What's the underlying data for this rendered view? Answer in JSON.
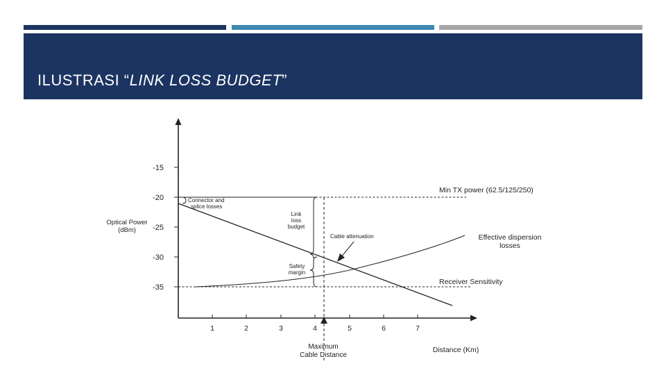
{
  "slide": {
    "title_prefix": "ILUSTRASI “",
    "title_italic": "LINK LOSS BUDGET",
    "title_suffix": "”",
    "bar_colors": [
      "#1c3461",
      "#3e88b2",
      "#a6a6a6"
    ]
  },
  "figure": {
    "ylabel_line1": "Optical Power",
    "ylabel_line2": "(dBm)",
    "xlabel": "Distance (Km)",
    "y_ticks": [
      "-15",
      "-20",
      "-25",
      "-30",
      "-35"
    ],
    "x_ticks": [
      "1",
      "2",
      "3",
      "4",
      "5",
      "6",
      "7"
    ],
    "labels": {
      "min_tx": "Min TX power (62.5/125/250)",
      "dispersion_1": "Effective dispersion",
      "dispersion_2": "losses",
      "receiver": "Receiver Sensitivity",
      "cable_attenuation": "Cable attenuation",
      "connector_1": "Connector and",
      "connector_2": "splice losses",
      "link_1": "Link",
      "link_2": "loss",
      "link_3": "budget",
      "safety_1": "Safety",
      "safety_2": "margin",
      "max_1": "Maximum",
      "max_2": "Cable Distance"
    }
  }
}
